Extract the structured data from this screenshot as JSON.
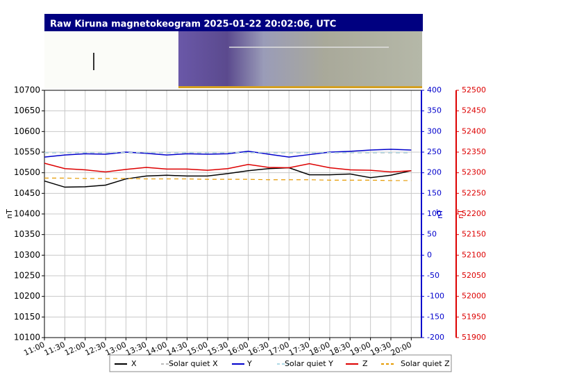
{
  "chart_data": {
    "type": "line",
    "title": "Raw Kiruna magnetokeogram 2025-01-22 20:02:06, UTC",
    "ylabel": "nT",
    "y2label": "nT",
    "y3label": "nT",
    "x": [
      "11:00",
      "11:30",
      "12:00",
      "12:30",
      "13:00",
      "13:30",
      "14:00",
      "14:30",
      "15:00",
      "15:30",
      "16:00",
      "16:30",
      "17:00",
      "17:30",
      "18:00",
      "18:30",
      "19:00",
      "19:30",
      "20:00"
    ],
    "xlim": [
      "11:00",
      "20:15"
    ],
    "xticks": [
      "11:00",
      "11:30",
      "12:00",
      "12:30",
      "13:00",
      "13:30",
      "14:00",
      "14:30",
      "15:00",
      "15:30",
      "16:00",
      "16:30",
      "17:00",
      "17:30",
      "18:00",
      "18:30",
      "19:00",
      "19:30",
      "20:00"
    ],
    "ylim": [
      10100,
      10700
    ],
    "yticks": [
      10100,
      10150,
      10200,
      10250,
      10300,
      10350,
      10400,
      10450,
      10500,
      10550,
      10600,
      10650,
      10700
    ],
    "y2lim": [
      -200,
      400
    ],
    "y2ticks": [
      -200,
      -150,
      -100,
      -50,
      0,
      50,
      100,
      150,
      200,
      250,
      300,
      350,
      400
    ],
    "y3lim": [
      51900,
      52500
    ],
    "y3ticks": [
      51900,
      51950,
      52000,
      52050,
      52100,
      52150,
      52200,
      52250,
      52300,
      52350,
      52400,
      52450,
      52500
    ],
    "grid": true,
    "series": [
      {
        "name": "X",
        "color": "#000000",
        "axis": "y",
        "dashed": false,
        "values": [
          10480,
          10465,
          10466,
          10470,
          10485,
          10492,
          10494,
          10492,
          10492,
          10498,
          10505,
          10510,
          10512,
          10495,
          10495,
          10497,
          10488,
          10494,
          10505
        ]
      },
      {
        "name": "Solar quiet X",
        "color": "#bbbbbb",
        "axis": "y",
        "dashed": true,
        "values": [
          10548,
          10548,
          10548,
          10548,
          10548,
          10548,
          10548,
          10548,
          10548,
          10548,
          10548,
          10548,
          10548,
          10548,
          10548,
          10548,
          10548,
          10548,
          10548
        ]
      },
      {
        "name": "Y",
        "color": "#0000cc",
        "axis": "y2",
        "dashed": false,
        "values": [
          238,
          243,
          246,
          245,
          250,
          247,
          243,
          246,
          245,
          246,
          252,
          245,
          238,
          244,
          250,
          252,
          255,
          257,
          255
        ]
      },
      {
        "name": "Solar quiet Y",
        "color": "#add8e6",
        "axis": "y2",
        "dashed": true,
        "values": [
          249,
          249,
          249,
          249,
          249,
          249,
          249,
          249,
          249,
          249,
          249,
          249,
          249,
          249,
          249,
          249,
          249,
          249,
          249
        ]
      },
      {
        "name": "Z",
        "color": "#dd0000",
        "axis": "y3",
        "dashed": false,
        "values": [
          52323,
          52310,
          52307,
          52302,
          52308,
          52313,
          52309,
          52309,
          52306,
          52310,
          52320,
          52313,
          52312,
          52322,
          52312,
          52307,
          52306,
          52302,
          52305
        ]
      },
      {
        "name": "Solar quiet Z",
        "color": "#e69a00",
        "axis": "y3",
        "dashed": true,
        "values": [
          52287,
          52287,
          52286,
          52286,
          52286,
          52285,
          52285,
          52285,
          52284,
          52284,
          52284,
          52283,
          52283,
          52283,
          52282,
          52282,
          52282,
          52281,
          52281
        ]
      }
    ]
  }
}
